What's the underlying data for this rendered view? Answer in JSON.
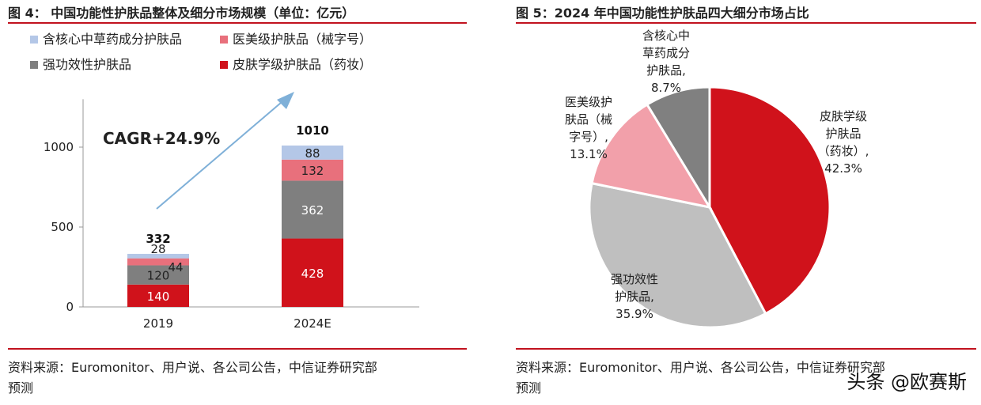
{
  "watermark": "头条 @欧赛斯",
  "colors": {
    "accent": "#c1121f",
    "tcm": "#b4c7e7",
    "medical": "#e8707c",
    "functional": "#7f7f7f",
    "derma": "#d0121b",
    "pie_tcm": "#808080",
    "pie_medical": "#f2a0aa",
    "pie_functional": "#bfbfbf",
    "pie_derma": "#d0121b",
    "arrow": "#7fb0d8"
  },
  "left": {
    "title": "图 4： 中国功能性护肤品整体及细分市场规模（单位：亿元）",
    "source_line1": "资料来源：Euromonitor、用户说、各公司公告，中信证券研究部",
    "source_line2": "预测",
    "cagr_label": "CAGR+24.9%"
  },
  "right": {
    "title": "图 5：2024 年中国功能性护肤品四大细分市场占比",
    "source_line1": "资料来源：Euromonitor、用户说、各公司公告，中信证券研究部",
    "source_line2": "预测"
  },
  "chart_data": [
    {
      "type": "bar",
      "stacked": true,
      "title": "中国功能性护肤品整体及细分市场规模（单位：亿元）",
      "categories": [
        "2019",
        "2024E"
      ],
      "series": [
        {
          "name": "皮肤学级护肤品（药妆）",
          "values": [
            140,
            428
          ],
          "color": "#d0121b"
        },
        {
          "name": "强功效性护肤品",
          "values": [
            120,
            362
          ],
          "color": "#7f7f7f"
        },
        {
          "name": "医美级护肤品（械字号）",
          "values": [
            44,
            132
          ],
          "color": "#e8707c"
        },
        {
          "name": "含核心中草药成分护肤品",
          "values": [
            28,
            88
          ],
          "color": "#b4c7e7"
        }
      ],
      "totals": [
        "332",
        "1010"
      ],
      "legend": [
        "含核心中草药成分护肤品",
        "医美级护肤品（械字号）",
        "强功效性护肤品",
        "皮肤学级护肤品（药妆）"
      ],
      "yticks": [
        "0",
        "500",
        "1000"
      ],
      "ylim": [
        0,
        1300
      ],
      "grid": false,
      "legend_position": "top"
    },
    {
      "type": "pie",
      "title": "2024 年中国功能性护肤品四大细分市场占比",
      "slices": [
        {
          "name": "皮肤学级护肤品（药妆）",
          "value": 42.3,
          "color": "#d0121b",
          "label_lines": [
            "皮肤学级",
            "护肤品",
            "（药妆）,",
            "42.3%"
          ]
        },
        {
          "name": "强功效性护肤品",
          "value": 35.9,
          "color": "#bfbfbf",
          "label_lines": [
            "强功效性",
            "护肤品,",
            "35.9%"
          ]
        },
        {
          "name": "医美级护肤品（械字号）",
          "value": 13.1,
          "color": "#f2a0aa",
          "label_lines": [
            "医美级护",
            "肤品（械",
            "字号）,",
            "13.1%"
          ]
        },
        {
          "name": "含核心中草药成分护肤品",
          "value": 8.7,
          "color": "#808080",
          "label_lines": [
            "含核心中",
            "草药成分",
            "护肤品,",
            "8.7%"
          ]
        }
      ]
    }
  ]
}
